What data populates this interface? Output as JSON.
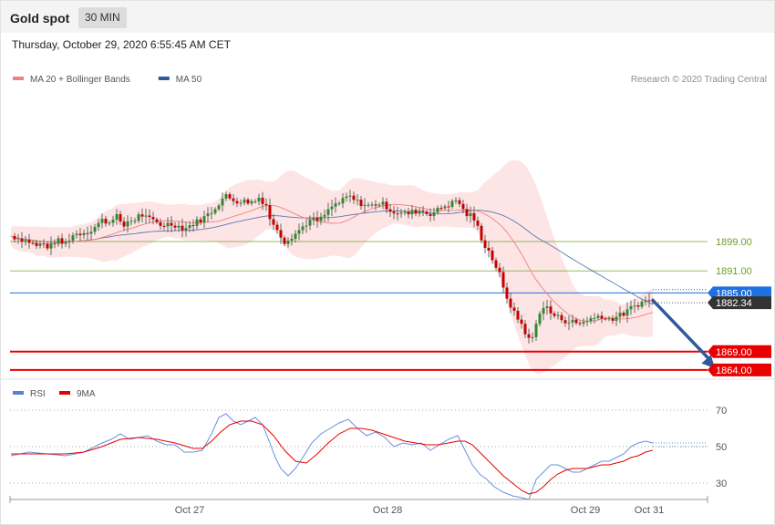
{
  "header": {
    "title": "Gold spot",
    "timeframe": "30 MIN",
    "datetime": "Thursday, October 29, 2020 6:55:45 AM CET"
  },
  "chart_data": [
    {
      "type": "candlestick",
      "legend": [
        {
          "name": "MA 20 + Bollinger Bands",
          "color": "#f08080"
        },
        {
          "name": "MA 50",
          "color": "#2c5a9a"
        }
      ],
      "credit": "Research © 2020 Trading Central",
      "ylim": [
        1860.5,
        1940
      ],
      "x_ticks": [
        "Oct 27",
        "Oct 28",
        "Oct 29",
        "Oct 31"
      ],
      "levels": [
        {
          "label": "1899.00",
          "value": 1899.0,
          "role": "resistance",
          "color": "#6aa121"
        },
        {
          "label": "1891.00",
          "value": 1891.0,
          "role": "resistance",
          "color": "#6aa121"
        },
        {
          "label": "1885.00",
          "value": 1885.0,
          "role": "pivot",
          "color": "#1e6fe0"
        },
        {
          "label": "1882.34",
          "value": 1882.34,
          "role": "last-price",
          "color": "#333333"
        },
        {
          "label": "1869.00",
          "value": 1869.0,
          "role": "support",
          "color": "#e80000"
        },
        {
          "label": "1864.00",
          "value": 1864.0,
          "role": "support",
          "color": "#e80000"
        }
      ],
      "price_path": [
        [
          0,
          1900.5
        ],
        [
          10,
          1899.8
        ],
        [
          20,
          1899.0
        ],
        [
          28,
          1897.8
        ],
        [
          35,
          1898.5
        ],
        [
          42,
          1897.3
        ],
        [
          50,
          1899.5
        ],
        [
          58,
          1898.2
        ],
        [
          68,
          1900.8
        ],
        [
          78,
          1901.4
        ],
        [
          88,
          1902.1
        ],
        [
          100,
          1904.8
        ],
        [
          108,
          1904.2
        ],
        [
          115,
          1906.8
        ],
        [
          122,
          1902.5
        ],
        [
          128,
          1904.6
        ],
        [
          135,
          1904.8
        ],
        [
          142,
          1906.5
        ],
        [
          150,
          1905.2
        ],
        [
          158,
          1904.5
        ],
        [
          165,
          1903.4
        ],
        [
          172,
          1903.8
        ],
        [
          180,
          1903.6
        ],
        [
          190,
          1902.5
        ],
        [
          198,
          1903.6
        ],
        [
          210,
          1905.2
        ],
        [
          220,
          1907.2
        ],
        [
          228,
          1909.5
        ],
        [
          235,
          1911.5
        ],
        [
          242,
          1910.5
        ],
        [
          250,
          1910.0
        ],
        [
          258,
          1910.0
        ],
        [
          266,
          1909.7
        ],
        [
          272,
          1911.0
        ],
        [
          280,
          1909.0
        ],
        [
          286,
          1903.6
        ],
        [
          292,
          1902.5
        ],
        [
          300,
          1899.0
        ],
        [
          308,
          1900.5
        ],
        [
          315,
          1901.8
        ],
        [
          322,
          1903.6
        ],
        [
          330,
          1905.0
        ],
        [
          338,
          1904.6
        ],
        [
          346,
          1906.8
        ],
        [
          354,
          1909.0
        ],
        [
          362,
          1909.7
        ],
        [
          370,
          1911.5
        ],
        [
          378,
          1910.0
        ],
        [
          386,
          1909.2
        ],
        [
          394,
          1908.6
        ],
        [
          402,
          1909.5
        ],
        [
          410,
          1909.0
        ],
        [
          418,
          1907.2
        ],
        [
          426,
          1906.8
        ],
        [
          434,
          1906.5
        ],
        [
          442,
          1907.2
        ],
        [
          450,
          1907.6
        ],
        [
          458,
          1906.5
        ],
        [
          466,
          1907.2
        ],
        [
          474,
          1908.6
        ],
        [
          482,
          1909.2
        ],
        [
          490,
          1910.5
        ],
        [
          498,
          1906.5
        ],
        [
          506,
          1906.0
        ],
        [
          512,
          1902.8
        ],
        [
          518,
          1898.6
        ],
        [
          524,
          1896.4
        ],
        [
          530,
          1893.2
        ],
        [
          536,
          1890.0
        ],
        [
          540,
          1886.0
        ],
        [
          544,
          1883.8
        ],
        [
          548,
          1881.6
        ],
        [
          552,
          1879.4
        ],
        [
          556,
          1878.0
        ],
        [
          560,
          1876.5
        ],
        [
          565,
          1873.8
        ],
        [
          570,
          1871.2
        ],
        [
          575,
          1875.5
        ],
        [
          580,
          1880.0
        ],
        [
          586,
          1881.6
        ],
        [
          592,
          1879.5
        ],
        [
          598,
          1878.5
        ],
        [
          604,
          1878.0
        ],
        [
          610,
          1877.2
        ],
        [
          616,
          1877.2
        ],
        [
          622,
          1876.5
        ],
        [
          628,
          1877.2
        ],
        [
          634,
          1878.0
        ],
        [
          640,
          1878.0
        ],
        [
          646,
          1879.2
        ],
        [
          652,
          1878.0
        ],
        [
          658,
          1877.8
        ],
        [
          664,
          1878.6
        ],
        [
          670,
          1879.0
        ],
        [
          676,
          1880.0
        ],
        [
          682,
          1881.2
        ],
        [
          688,
          1882.0
        ],
        [
          694,
          1882.6
        ],
        [
          700,
          1883.2
        ],
        [
          704,
          1882.4
        ]
      ],
      "trend_arrow": {
        "from": [
          704,
          1883.0
        ],
        "to": [
          772,
          1864.4
        ]
      }
    },
    {
      "type": "line",
      "legend": [
        {
          "name": "RSI",
          "color": "#5a7fd6"
        },
        {
          "name": "9MA",
          "color": "#e80000"
        }
      ],
      "ylim": [
        20,
        75
      ],
      "y_ticks": [
        70,
        50,
        30
      ],
      "rsi": [
        [
          0,
          45
        ],
        [
          20,
          47
        ],
        [
          40,
          46
        ],
        [
          60,
          45
        ],
        [
          80,
          47
        ],
        [
          100,
          52
        ],
        [
          110,
          54
        ],
        [
          120,
          57
        ],
        [
          130,
          54
        ],
        [
          140,
          55
        ],
        [
          150,
          56
        ],
        [
          160,
          53
        ],
        [
          170,
          51
        ],
        [
          180,
          51
        ],
        [
          190,
          47
        ],
        [
          200,
          47
        ],
        [
          210,
          48
        ],
        [
          220,
          57
        ],
        [
          228,
          66
        ],
        [
          236,
          68
        ],
        [
          244,
          64
        ],
        [
          252,
          62
        ],
        [
          260,
          64
        ],
        [
          268,
          66
        ],
        [
          276,
          62
        ],
        [
          284,
          52
        ],
        [
          290,
          44
        ],
        [
          296,
          38
        ],
        [
          304,
          34
        ],
        [
          312,
          38
        ],
        [
          320,
          44
        ],
        [
          330,
          52
        ],
        [
          340,
          57
        ],
        [
          350,
          60
        ],
        [
          360,
          63
        ],
        [
          370,
          65
        ],
        [
          380,
          60
        ],
        [
          390,
          56
        ],
        [
          400,
          58
        ],
        [
          410,
          55
        ],
        [
          420,
          50
        ],
        [
          430,
          52
        ],
        [
          440,
          51
        ],
        [
          450,
          52
        ],
        [
          460,
          48
        ],
        [
          470,
          51
        ],
        [
          480,
          54
        ],
        [
          490,
          56
        ],
        [
          498,
          48
        ],
        [
          506,
          40
        ],
        [
          514,
          35
        ],
        [
          522,
          32
        ],
        [
          530,
          28
        ],
        [
          540,
          25
        ],
        [
          550,
          23
        ],
        [
          560,
          22
        ],
        [
          568,
          21
        ],
        [
          576,
          32
        ],
        [
          584,
          36
        ],
        [
          592,
          40
        ],
        [
          600,
          40
        ],
        [
          608,
          38
        ],
        [
          616,
          36
        ],
        [
          624,
          36
        ],
        [
          632,
          38
        ],
        [
          640,
          40
        ],
        [
          648,
          42
        ],
        [
          656,
          42
        ],
        [
          664,
          44
        ],
        [
          672,
          46
        ],
        [
          680,
          50
        ],
        [
          688,
          52
        ],
        [
          696,
          53
        ],
        [
          704,
          52
        ]
      ],
      "ma9": [
        [
          0,
          46
        ],
        [
          20,
          46
        ],
        [
          40,
          46
        ],
        [
          60,
          46
        ],
        [
          80,
          47
        ],
        [
          100,
          50
        ],
        [
          120,
          54
        ],
        [
          140,
          55
        ],
        [
          160,
          54
        ],
        [
          180,
          52
        ],
        [
          200,
          49
        ],
        [
          210,
          49
        ],
        [
          220,
          53
        ],
        [
          230,
          58
        ],
        [
          240,
          62
        ],
        [
          252,
          64
        ],
        [
          264,
          64
        ],
        [
          276,
          62
        ],
        [
          288,
          56
        ],
        [
          300,
          48
        ],
        [
          312,
          42
        ],
        [
          324,
          41
        ],
        [
          336,
          46
        ],
        [
          348,
          52
        ],
        [
          360,
          57
        ],
        [
          372,
          60
        ],
        [
          384,
          60
        ],
        [
          396,
          59
        ],
        [
          408,
          57
        ],
        [
          420,
          55
        ],
        [
          432,
          53
        ],
        [
          444,
          52
        ],
        [
          456,
          51
        ],
        [
          468,
          51
        ],
        [
          480,
          52
        ],
        [
          490,
          53
        ],
        [
          498,
          53
        ],
        [
          506,
          51
        ],
        [
          514,
          47
        ],
        [
          522,
          43
        ],
        [
          530,
          39
        ],
        [
          540,
          34
        ],
        [
          550,
          30
        ],
        [
          560,
          26
        ],
        [
          568,
          24
        ],
        [
          576,
          25
        ],
        [
          584,
          28
        ],
        [
          592,
          32
        ],
        [
          600,
          35
        ],
        [
          608,
          37
        ],
        [
          616,
          38
        ],
        [
          624,
          38
        ],
        [
          632,
          38
        ],
        [
          640,
          39
        ],
        [
          648,
          40
        ],
        [
          656,
          40
        ],
        [
          664,
          41
        ],
        [
          672,
          42
        ],
        [
          680,
          44
        ],
        [
          688,
          45
        ],
        [
          696,
          47
        ],
        [
          704,
          48
        ]
      ]
    }
  ]
}
